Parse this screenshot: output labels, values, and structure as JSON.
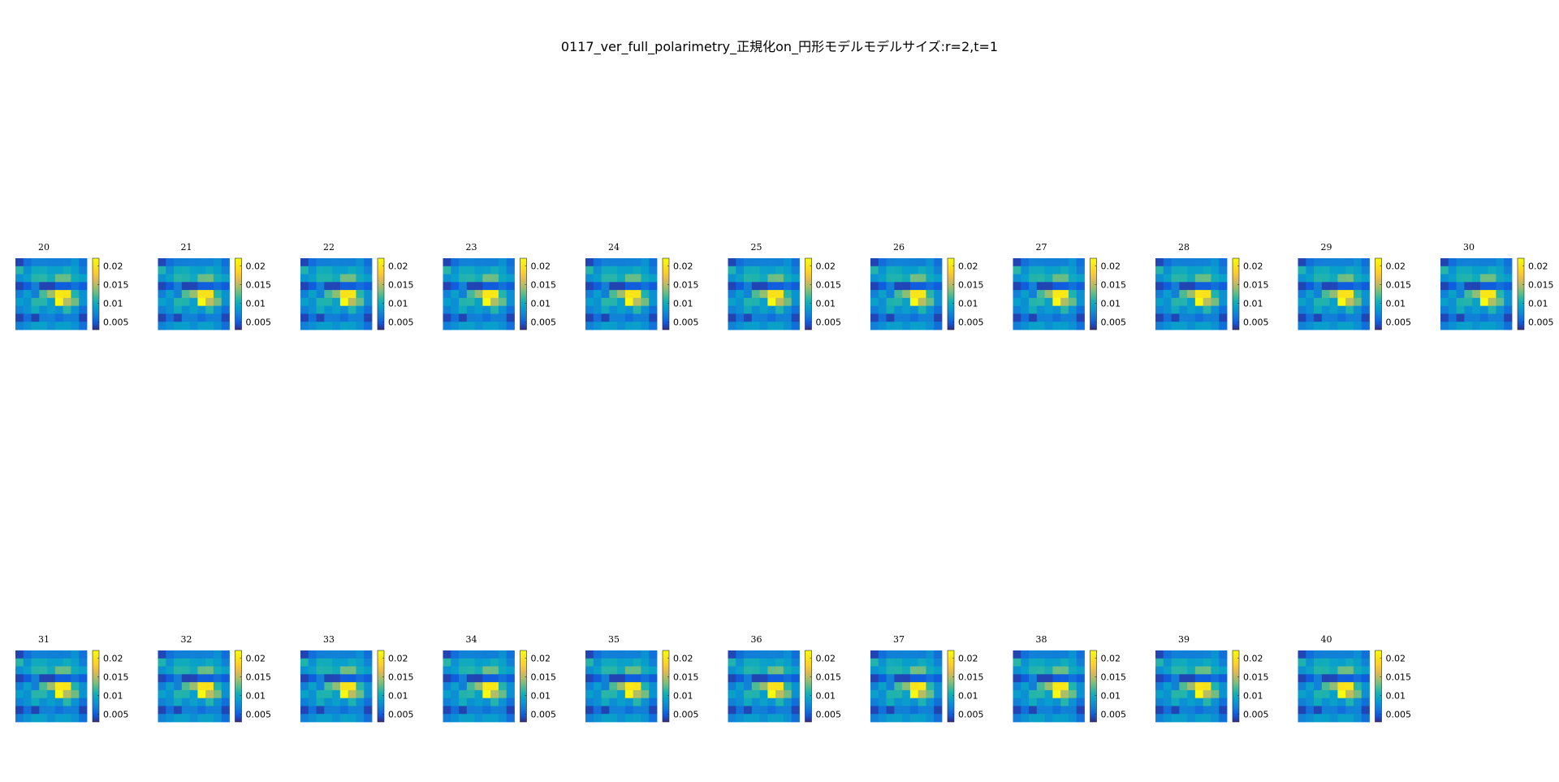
{
  "figure": {
    "title": "0117_ver_full_polarimetry_正規化on_円形モデルモデルサイズ:r=2,t=1"
  },
  "chart_data": {
    "type": "heatmap",
    "title": "0117_ver_full_polarimetry_正規化on_円形モデルモデルサイズ:r=2,t=1",
    "colormap": "parula",
    "clim": [
      0.003,
      0.022
    ],
    "colorbar_ticks": [
      "0.02",
      "0.015",
      "0.01",
      "0.005"
    ],
    "colorbar_tick_values": [
      0.02,
      0.015,
      0.01,
      0.005
    ],
    "grid_size": [
      9,
      9
    ],
    "panel_labels": [
      "20",
      "21",
      "22",
      "23",
      "24",
      "25",
      "26",
      "27",
      "28",
      "29",
      "30",
      "31",
      "32",
      "33",
      "34",
      "35",
      "36",
      "37",
      "38",
      "39",
      "40"
    ],
    "rows_of_panels": [
      [
        "20",
        "21",
        "22",
        "23",
        "24",
        "25",
        "26",
        "27",
        "28",
        "29",
        "30"
      ],
      [
        "31",
        "32",
        "33",
        "34",
        "35",
        "36",
        "37",
        "38",
        "39",
        "40"
      ]
    ],
    "matrix_approx": [
      [
        0.004,
        0.006,
        0.007,
        0.007,
        0.007,
        0.007,
        0.007,
        0.008,
        0.006
      ],
      [
        0.011,
        0.008,
        0.01,
        0.01,
        0.009,
        0.009,
        0.01,
        0.009,
        0.007
      ],
      [
        0.008,
        0.009,
        0.011,
        0.011,
        0.01,
        0.013,
        0.013,
        0.01,
        0.009
      ],
      [
        0.004,
        0.005,
        0.007,
        0.004,
        0.004,
        0.005,
        0.005,
        0.006,
        0.005
      ],
      [
        0.007,
        0.009,
        0.007,
        0.012,
        0.014,
        0.02,
        0.02,
        0.011,
        0.008
      ],
      [
        0.009,
        0.008,
        0.011,
        0.011,
        0.009,
        0.022,
        0.015,
        0.013,
        0.008
      ],
      [
        0.007,
        0.008,
        0.01,
        0.008,
        0.009,
        0.008,
        0.011,
        0.008,
        0.006
      ],
      [
        0.004,
        0.006,
        0.004,
        0.007,
        0.007,
        0.006,
        0.007,
        0.007,
        0.004
      ],
      [
        0.007,
        0.008,
        0.009,
        0.009,
        0.008,
        0.009,
        0.009,
        0.008,
        0.006
      ]
    ]
  }
}
